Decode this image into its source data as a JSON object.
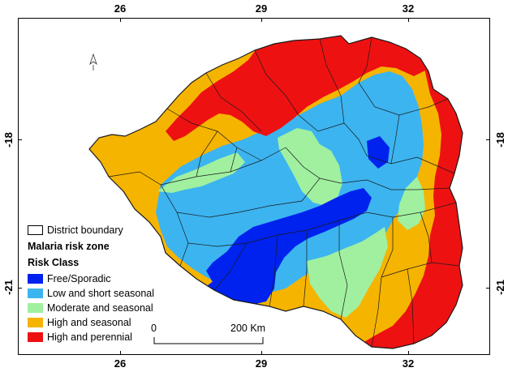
{
  "axes": {
    "top_ticks": [
      "26",
      "29",
      "32"
    ],
    "bottom_ticks": [
      "26",
      "29",
      "32"
    ],
    "left_ticks": [
      "-18",
      "-21"
    ],
    "right_ticks": [
      "-18",
      "-21"
    ]
  },
  "legend": {
    "boundary_label": "District boundary",
    "title": "Malaria risk zone",
    "subtitle": "Risk Class",
    "classes": [
      {
        "label": "Free/Sporadic",
        "color": "#0022ee"
      },
      {
        "label": "Low and short seasonal",
        "color": "#3cb4f0"
      },
      {
        "label": "Moderate and seasonal",
        "color": "#a0f0a0"
      },
      {
        "label": "High and seasonal",
        "color": "#f5b400"
      },
      {
        "label": "High and perennial",
        "color": "#ee1111"
      }
    ]
  },
  "scalebar": {
    "start_label": "0",
    "end_label": "200 Km"
  },
  "colors": {
    "free": "#0022ee",
    "low": "#3cb4f0",
    "moderate": "#a0f0a0",
    "high_seasonal": "#f5b400",
    "perennial": "#ee1111",
    "boundary": "#1a1a1a"
  },
  "north_arrow_icon": "north-arrow-icon"
}
